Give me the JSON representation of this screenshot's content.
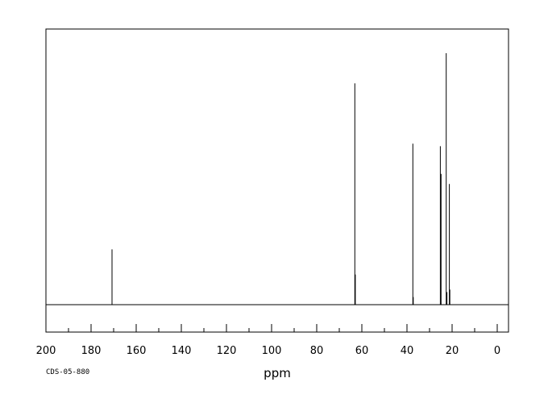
{
  "chart_data": {
    "type": "line",
    "title": "",
    "xlabel": "ppm",
    "ylabel": "",
    "xlim": [
      200,
      -5
    ],
    "ylim": [
      0,
      1
    ],
    "reversed_x": true,
    "grid": false,
    "legend": "none",
    "x_ticks": [
      200,
      180,
      160,
      140,
      120,
      100,
      80,
      60,
      40,
      20,
      0
    ],
    "x_tick_labels": [
      "200",
      "180",
      "160",
      "140",
      "120",
      "100",
      "80",
      "60",
      "40",
      "20",
      "0"
    ],
    "peaks": [
      {
        "ppm": 170.7,
        "height": 0.22
      },
      {
        "ppm": 63.1,
        "height": 0.88
      },
      {
        "ppm": 62.9,
        "height": 0.12
      },
      {
        "ppm": 37.4,
        "height": 0.64
      },
      {
        "ppm": 37.2,
        "height": 0.03
      },
      {
        "ppm": 25.2,
        "height": 0.63
      },
      {
        "ppm": 24.9,
        "height": 0.52
      },
      {
        "ppm": 22.6,
        "height": 1.0
      },
      {
        "ppm": 22.3,
        "height": 0.05
      },
      {
        "ppm": 21.2,
        "height": 0.48
      },
      {
        "ppm": 21.0,
        "height": 0.06
      }
    ],
    "annotation": "CDS-05-880",
    "line_color": "#000000"
  }
}
